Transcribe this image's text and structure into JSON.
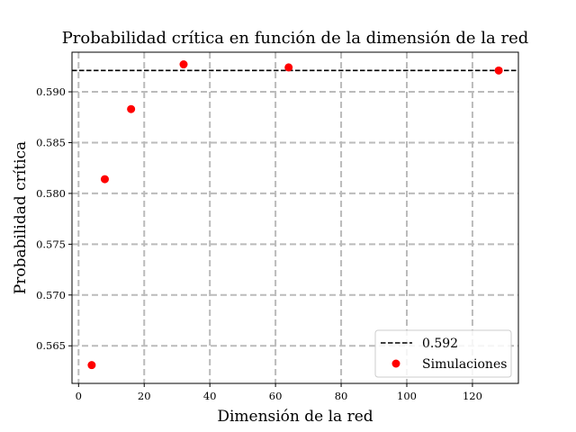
{
  "chart_data": {
    "type": "scatter",
    "title": "Probabilidad crítica en función de la dimensión de la red",
    "xlabel": "Dimensión de la red",
    "ylabel": "Probabilidad crítica",
    "xlim": [
      -2,
      134
    ],
    "ylim": [
      0.5613,
      0.5939
    ],
    "xticks": [
      0,
      20,
      40,
      60,
      80,
      100,
      120
    ],
    "yticks": [
      0.565,
      0.57,
      0.575,
      0.58,
      0.585,
      0.59
    ],
    "ytick_labels": [
      "0.565",
      "0.570",
      "0.575",
      "0.580",
      "0.585",
      "0.590"
    ],
    "grid": true,
    "legend_position": "lower right",
    "reference_line": {
      "name": "0.592",
      "y": 0.5921,
      "style": "dashed",
      "color": "#000000"
    },
    "series": [
      {
        "name": "Simulaciones",
        "color": "#ff0000",
        "x": [
          4,
          8,
          16,
          32,
          64,
          128
        ],
        "y": [
          0.5631,
          0.5814,
          0.5883,
          0.5927,
          0.5924,
          0.5921
        ]
      }
    ]
  }
}
